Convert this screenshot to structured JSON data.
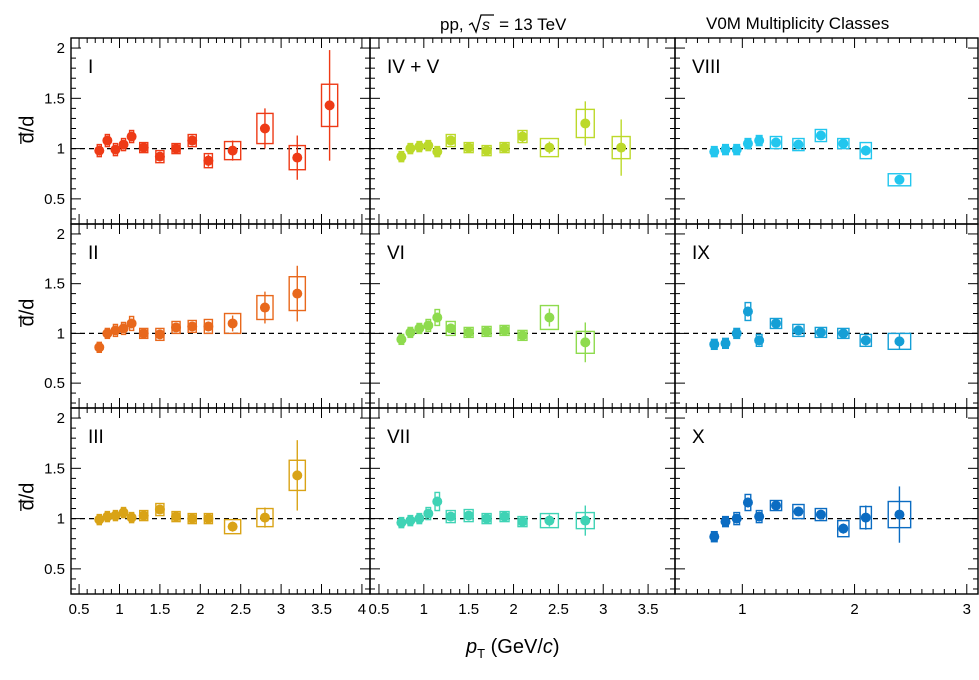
{
  "header": {
    "energy_prefix": "pp,",
    "energy_sqrt": "s",
    "energy_value": "= 13 TeV",
    "class_title": "V0M Multiplicity Classes"
  },
  "axis": {
    "ylabel": "d̅/d",
    "xlabel_var": "p",
    "xlabel_sub": "T",
    "xlabel_unit_open": " (GeV/",
    "xlabel_unit_c": "c",
    "xlabel_unit_close": ")"
  },
  "colors": {
    "I": "#ee3a16",
    "II": "#e8681c",
    "III": "#d9a316",
    "IV + V": "#bcd92a",
    "VI": "#8edb4e",
    "VII": "#3fd3b5",
    "VIII": "#22c6ee",
    "IX": "#159fd6",
    "X": "#0b6cc2"
  },
  "chart_data": [
    {
      "type": "scatter",
      "title": "I",
      "xlim": [
        0.4,
        4.1
      ],
      "ylim": [
        0.25,
        2.1
      ],
      "yticks": [
        "0.5",
        "1",
        "1.5",
        "2"
      ],
      "xticks": [
        "0.5",
        "1",
        "1.5",
        "2",
        "2.5",
        "3",
        "3.5",
        "4"
      ],
      "reference_line": 1,
      "points": [
        {
          "x": 0.75,
          "y": 0.98,
          "stat": 0.05,
          "sys": 0.06,
          "bw": 0.05
        },
        {
          "x": 0.85,
          "y": 1.08,
          "stat": 0.05,
          "sys": 0.06,
          "bw": 0.05
        },
        {
          "x": 0.95,
          "y": 0.99,
          "stat": 0.04,
          "sys": 0.06,
          "bw": 0.05
        },
        {
          "x": 1.05,
          "y": 1.04,
          "stat": 0.04,
          "sys": 0.06,
          "bw": 0.05
        },
        {
          "x": 1.15,
          "y": 1.12,
          "stat": 0.04,
          "sys": 0.06,
          "bw": 0.05
        },
        {
          "x": 1.3,
          "y": 1.01,
          "stat": 0.04,
          "sys": 0.05,
          "bw": 0.1
        },
        {
          "x": 1.5,
          "y": 0.92,
          "stat": 0.04,
          "sys": 0.06,
          "bw": 0.1
        },
        {
          "x": 1.7,
          "y": 1.0,
          "stat": 0.04,
          "sys": 0.05,
          "bw": 0.1
        },
        {
          "x": 1.9,
          "y": 1.08,
          "stat": 0.05,
          "sys": 0.06,
          "bw": 0.1
        },
        {
          "x": 2.1,
          "y": 0.88,
          "stat": 0.06,
          "sys": 0.07,
          "bw": 0.1
        },
        {
          "x": 2.4,
          "y": 0.98,
          "stat": 0.1,
          "sys": 0.09,
          "bw": 0.2
        },
        {
          "x": 2.8,
          "y": 1.2,
          "stat": 0.2,
          "sys": 0.15,
          "bw": 0.2
        },
        {
          "x": 3.2,
          "y": 0.91,
          "stat": 0.22,
          "sys": 0.12,
          "bw": 0.2
        },
        {
          "x": 3.6,
          "y": 1.43,
          "stat": 0.55,
          "sys": 0.21,
          "bw": 0.2
        }
      ]
    },
    {
      "type": "scatter",
      "title": "IV + V",
      "xlim": [
        0.4,
        3.8
      ],
      "ylim": [
        0.25,
        2.1
      ],
      "yticks": [
        "0.5",
        "1",
        "1.5",
        "2"
      ],
      "xticks": [
        "0.5",
        "1",
        "1.5",
        "2",
        "2.5",
        "3",
        "3.5"
      ],
      "reference_line": 1,
      "points": [
        {
          "x": 0.75,
          "y": 0.92,
          "stat": 0.04,
          "sys": 0.05,
          "bw": 0.05
        },
        {
          "x": 0.85,
          "y": 1.0,
          "stat": 0.04,
          "sys": 0.05,
          "bw": 0.05
        },
        {
          "x": 0.95,
          "y": 1.02,
          "stat": 0.04,
          "sys": 0.05,
          "bw": 0.05
        },
        {
          "x": 1.05,
          "y": 1.03,
          "stat": 0.04,
          "sys": 0.05,
          "bw": 0.05
        },
        {
          "x": 1.15,
          "y": 0.97,
          "stat": 0.04,
          "sys": 0.05,
          "bw": 0.05
        },
        {
          "x": 1.3,
          "y": 1.08,
          "stat": 0.04,
          "sys": 0.06,
          "bw": 0.1
        },
        {
          "x": 1.5,
          "y": 1.01,
          "stat": 0.04,
          "sys": 0.05,
          "bw": 0.1
        },
        {
          "x": 1.7,
          "y": 0.98,
          "stat": 0.04,
          "sys": 0.05,
          "bw": 0.1
        },
        {
          "x": 1.9,
          "y": 1.01,
          "stat": 0.04,
          "sys": 0.05,
          "bw": 0.1
        },
        {
          "x": 2.1,
          "y": 1.12,
          "stat": 0.06,
          "sys": 0.06,
          "bw": 0.1
        },
        {
          "x": 2.4,
          "y": 1.01,
          "stat": 0.06,
          "sys": 0.09,
          "bw": 0.2
        },
        {
          "x": 2.8,
          "y": 1.25,
          "stat": 0.22,
          "sys": 0.14,
          "bw": 0.2
        },
        {
          "x": 3.2,
          "y": 1.01,
          "stat": 0.28,
          "sys": 0.11,
          "bw": 0.2
        }
      ]
    },
    {
      "type": "scatter",
      "title": "VIII",
      "xlim": [
        0.4,
        3.1
      ],
      "ylim": [
        0.25,
        2.1
      ],
      "yticks": [
        "0.5",
        "1",
        "1.5",
        "2"
      ],
      "xticks": [
        "1",
        "2",
        "3"
      ],
      "reference_line": 1,
      "points": [
        {
          "x": 0.75,
          "y": 0.97,
          "stat": 0.04,
          "sys": 0.05,
          "bw": 0.05
        },
        {
          "x": 0.85,
          "y": 0.99,
          "stat": 0.03,
          "sys": 0.05,
          "bw": 0.05
        },
        {
          "x": 0.95,
          "y": 0.99,
          "stat": 0.03,
          "sys": 0.05,
          "bw": 0.05
        },
        {
          "x": 1.05,
          "y": 1.05,
          "stat": 0.03,
          "sys": 0.05,
          "bw": 0.05
        },
        {
          "x": 1.15,
          "y": 1.08,
          "stat": 0.03,
          "sys": 0.05,
          "bw": 0.05
        },
        {
          "x": 1.3,
          "y": 1.06,
          "stat": 0.03,
          "sys": 0.06,
          "bw": 0.1
        },
        {
          "x": 1.5,
          "y": 1.04,
          "stat": 0.03,
          "sys": 0.06,
          "bw": 0.1
        },
        {
          "x": 1.7,
          "y": 1.13,
          "stat": 0.04,
          "sys": 0.06,
          "bw": 0.1
        },
        {
          "x": 1.9,
          "y": 1.05,
          "stat": 0.04,
          "sys": 0.05,
          "bw": 0.1
        },
        {
          "x": 2.1,
          "y": 0.98,
          "stat": 0.05,
          "sys": 0.08,
          "bw": 0.1
        },
        {
          "x": 2.4,
          "y": 0.69,
          "stat": 0.03,
          "sys": 0.06,
          "bw": 0.2
        }
      ]
    },
    {
      "type": "scatter",
      "title": "II",
      "xlim": [
        0.4,
        4.1
      ],
      "ylim": [
        0.25,
        2.1
      ],
      "yticks": [
        "0.5",
        "1",
        "1.5",
        "2"
      ],
      "xticks": [
        "0.5",
        "1",
        "1.5",
        "2",
        "2.5",
        "3",
        "3.5",
        "4"
      ],
      "reference_line": 1,
      "points": [
        {
          "x": 0.75,
          "y": 0.86,
          "stat": 0.05,
          "sys": 0.05,
          "bw": 0.05
        },
        {
          "x": 0.85,
          "y": 1.0,
          "stat": 0.04,
          "sys": 0.05,
          "bw": 0.05
        },
        {
          "x": 0.95,
          "y": 1.03,
          "stat": 0.04,
          "sys": 0.06,
          "bw": 0.05
        },
        {
          "x": 1.05,
          "y": 1.05,
          "stat": 0.04,
          "sys": 0.06,
          "bw": 0.05
        },
        {
          "x": 1.15,
          "y": 1.1,
          "stat": 0.04,
          "sys": 0.07,
          "bw": 0.05
        },
        {
          "x": 1.3,
          "y": 1.0,
          "stat": 0.04,
          "sys": 0.05,
          "bw": 0.1
        },
        {
          "x": 1.5,
          "y": 0.99,
          "stat": 0.04,
          "sys": 0.06,
          "bw": 0.1
        },
        {
          "x": 1.7,
          "y": 1.06,
          "stat": 0.04,
          "sys": 0.06,
          "bw": 0.1
        },
        {
          "x": 1.9,
          "y": 1.07,
          "stat": 0.04,
          "sys": 0.06,
          "bw": 0.1
        },
        {
          "x": 2.1,
          "y": 1.07,
          "stat": 0.05,
          "sys": 0.07,
          "bw": 0.1
        },
        {
          "x": 2.4,
          "y": 1.1,
          "stat": 0.08,
          "sys": 0.1,
          "bw": 0.2
        },
        {
          "x": 2.8,
          "y": 1.26,
          "stat": 0.16,
          "sys": 0.12,
          "bw": 0.2
        },
        {
          "x": 3.2,
          "y": 1.4,
          "stat": 0.28,
          "sys": 0.17,
          "bw": 0.2
        }
      ]
    },
    {
      "type": "scatter",
      "title": "VI",
      "xlim": [
        0.4,
        3.8
      ],
      "ylim": [
        0.25,
        2.1
      ],
      "yticks": [
        "0.5",
        "1",
        "1.5",
        "2"
      ],
      "xticks": [
        "0.5",
        "1",
        "1.5",
        "2",
        "2.5",
        "3",
        "3.5"
      ],
      "reference_line": 1,
      "points": [
        {
          "x": 0.75,
          "y": 0.94,
          "stat": 0.04,
          "sys": 0.05,
          "bw": 0.05
        },
        {
          "x": 0.85,
          "y": 1.01,
          "stat": 0.04,
          "sys": 0.05,
          "bw": 0.05
        },
        {
          "x": 0.95,
          "y": 1.05,
          "stat": 0.03,
          "sys": 0.05,
          "bw": 0.05
        },
        {
          "x": 1.05,
          "y": 1.08,
          "stat": 0.03,
          "sys": 0.06,
          "bw": 0.05
        },
        {
          "x": 1.15,
          "y": 1.16,
          "stat": 0.04,
          "sys": 0.08,
          "bw": 0.05
        },
        {
          "x": 1.3,
          "y": 1.05,
          "stat": 0.04,
          "sys": 0.07,
          "bw": 0.1
        },
        {
          "x": 1.5,
          "y": 1.01,
          "stat": 0.03,
          "sys": 0.05,
          "bw": 0.1
        },
        {
          "x": 1.7,
          "y": 1.02,
          "stat": 0.03,
          "sys": 0.05,
          "bw": 0.1
        },
        {
          "x": 1.9,
          "y": 1.03,
          "stat": 0.04,
          "sys": 0.05,
          "bw": 0.1
        },
        {
          "x": 2.1,
          "y": 0.98,
          "stat": 0.05,
          "sys": 0.05,
          "bw": 0.1
        },
        {
          "x": 2.4,
          "y": 1.16,
          "stat": 0.09,
          "sys": 0.12,
          "bw": 0.2
        },
        {
          "x": 2.8,
          "y": 0.91,
          "stat": 0.2,
          "sys": 0.11,
          "bw": 0.2
        }
      ]
    },
    {
      "type": "scatter",
      "title": "IX",
      "xlim": [
        0.4,
        3.1
      ],
      "ylim": [
        0.25,
        2.1
      ],
      "yticks": [
        "0.5",
        "1",
        "1.5",
        "2"
      ],
      "xticks": [
        "1",
        "2",
        "3"
      ],
      "reference_line": 1,
      "points": [
        {
          "x": 0.75,
          "y": 0.89,
          "stat": 0.04,
          "sys": 0.05,
          "bw": 0.05
        },
        {
          "x": 0.85,
          "y": 0.9,
          "stat": 0.03,
          "sys": 0.05,
          "bw": 0.05
        },
        {
          "x": 0.95,
          "y": 1.0,
          "stat": 0.03,
          "sys": 0.05,
          "bw": 0.05
        },
        {
          "x": 1.05,
          "y": 1.22,
          "stat": 0.05,
          "sys": 0.09,
          "bw": 0.05
        },
        {
          "x": 1.15,
          "y": 0.93,
          "stat": 0.04,
          "sys": 0.06,
          "bw": 0.05
        },
        {
          "x": 1.3,
          "y": 1.1,
          "stat": 0.04,
          "sys": 0.05,
          "bw": 0.1
        },
        {
          "x": 1.5,
          "y": 1.03,
          "stat": 0.04,
          "sys": 0.06,
          "bw": 0.1
        },
        {
          "x": 1.7,
          "y": 1.01,
          "stat": 0.04,
          "sys": 0.05,
          "bw": 0.1
        },
        {
          "x": 1.9,
          "y": 1.0,
          "stat": 0.04,
          "sys": 0.05,
          "bw": 0.1
        },
        {
          "x": 2.1,
          "y": 0.93,
          "stat": 0.05,
          "sys": 0.06,
          "bw": 0.1
        },
        {
          "x": 2.4,
          "y": 0.92,
          "stat": 0.08,
          "sys": 0.08,
          "bw": 0.2
        }
      ]
    },
    {
      "type": "scatter",
      "title": "III",
      "xlim": [
        0.4,
        4.1
      ],
      "ylim": [
        0.25,
        2.1
      ],
      "yticks": [
        "0.5",
        "1",
        "1.5",
        "2"
      ],
      "xticks": [
        "0.5",
        "1",
        "1.5",
        "2",
        "2.5",
        "3",
        "3.5",
        "4"
      ],
      "reference_line": 1,
      "points": [
        {
          "x": 0.75,
          "y": 0.99,
          "stat": 0.04,
          "sys": 0.05,
          "bw": 0.05
        },
        {
          "x": 0.85,
          "y": 1.02,
          "stat": 0.04,
          "sys": 0.05,
          "bw": 0.05
        },
        {
          "x": 0.95,
          "y": 1.03,
          "stat": 0.04,
          "sys": 0.05,
          "bw": 0.05
        },
        {
          "x": 1.05,
          "y": 1.06,
          "stat": 0.04,
          "sys": 0.05,
          "bw": 0.05
        },
        {
          "x": 1.15,
          "y": 1.01,
          "stat": 0.04,
          "sys": 0.05,
          "bw": 0.05
        },
        {
          "x": 1.3,
          "y": 1.03,
          "stat": 0.04,
          "sys": 0.05,
          "bw": 0.1
        },
        {
          "x": 1.5,
          "y": 1.09,
          "stat": 0.04,
          "sys": 0.06,
          "bw": 0.1
        },
        {
          "x": 1.7,
          "y": 1.02,
          "stat": 0.04,
          "sys": 0.05,
          "bw": 0.1
        },
        {
          "x": 1.9,
          "y": 1.0,
          "stat": 0.04,
          "sys": 0.05,
          "bw": 0.1
        },
        {
          "x": 2.1,
          "y": 1.0,
          "stat": 0.04,
          "sys": 0.05,
          "bw": 0.1
        },
        {
          "x": 2.4,
          "y": 0.92,
          "stat": 0.05,
          "sys": 0.07,
          "bw": 0.2
        },
        {
          "x": 2.8,
          "y": 1.01,
          "stat": 0.1,
          "sys": 0.09,
          "bw": 0.2
        },
        {
          "x": 3.2,
          "y": 1.43,
          "stat": 0.35,
          "sys": 0.15,
          "bw": 0.2
        }
      ]
    },
    {
      "type": "scatter",
      "title": "VII",
      "xlim": [
        0.4,
        3.8
      ],
      "ylim": [
        0.25,
        2.1
      ],
      "yticks": [
        "0.5",
        "1",
        "1.5",
        "2"
      ],
      "xticks": [
        "0.5",
        "1",
        "1.5",
        "2",
        "2.5",
        "3",
        "3.5"
      ],
      "reference_line": 1,
      "points": [
        {
          "x": 0.75,
          "y": 0.96,
          "stat": 0.04,
          "sys": 0.05,
          "bw": 0.05
        },
        {
          "x": 0.85,
          "y": 0.98,
          "stat": 0.03,
          "sys": 0.05,
          "bw": 0.05
        },
        {
          "x": 0.95,
          "y": 1.0,
          "stat": 0.03,
          "sys": 0.05,
          "bw": 0.05
        },
        {
          "x": 1.05,
          "y": 1.05,
          "stat": 0.03,
          "sys": 0.06,
          "bw": 0.05
        },
        {
          "x": 1.15,
          "y": 1.17,
          "stat": 0.04,
          "sys": 0.09,
          "bw": 0.05
        },
        {
          "x": 1.3,
          "y": 1.02,
          "stat": 0.03,
          "sys": 0.06,
          "bw": 0.1
        },
        {
          "x": 1.5,
          "y": 1.03,
          "stat": 0.03,
          "sys": 0.06,
          "bw": 0.1
        },
        {
          "x": 1.7,
          "y": 1.0,
          "stat": 0.03,
          "sys": 0.05,
          "bw": 0.1
        },
        {
          "x": 1.9,
          "y": 1.02,
          "stat": 0.03,
          "sys": 0.05,
          "bw": 0.1
        },
        {
          "x": 2.1,
          "y": 0.97,
          "stat": 0.04,
          "sys": 0.05,
          "bw": 0.1
        },
        {
          "x": 2.4,
          "y": 0.98,
          "stat": 0.06,
          "sys": 0.07,
          "bw": 0.2
        },
        {
          "x": 2.8,
          "y": 0.98,
          "stat": 0.15,
          "sys": 0.08,
          "bw": 0.2
        }
      ]
    },
    {
      "type": "scatter",
      "title": "X",
      "xlim": [
        0.4,
        3.1
      ],
      "ylim": [
        0.25,
        2.1
      ],
      "yticks": [
        "0.5",
        "1",
        "1.5",
        "2"
      ],
      "xticks": [
        "1",
        "2",
        "3"
      ],
      "reference_line": 1,
      "points": [
        {
          "x": 0.75,
          "y": 0.82,
          "stat": 0.04,
          "sys": 0.05,
          "bw": 0.05
        },
        {
          "x": 0.85,
          "y": 0.97,
          "stat": 0.04,
          "sys": 0.05,
          "bw": 0.05
        },
        {
          "x": 0.95,
          "y": 1.0,
          "stat": 0.03,
          "sys": 0.06,
          "bw": 0.05
        },
        {
          "x": 1.05,
          "y": 1.16,
          "stat": 0.05,
          "sys": 0.08,
          "bw": 0.05
        },
        {
          "x": 1.15,
          "y": 1.02,
          "stat": 0.04,
          "sys": 0.06,
          "bw": 0.05
        },
        {
          "x": 1.3,
          "y": 1.13,
          "stat": 0.04,
          "sys": 0.05,
          "bw": 0.1
        },
        {
          "x": 1.5,
          "y": 1.07,
          "stat": 0.04,
          "sys": 0.07,
          "bw": 0.1
        },
        {
          "x": 1.7,
          "y": 1.04,
          "stat": 0.04,
          "sys": 0.06,
          "bw": 0.1
        },
        {
          "x": 1.9,
          "y": 0.9,
          "stat": 0.05,
          "sys": 0.08,
          "bw": 0.1
        },
        {
          "x": 2.1,
          "y": 1.01,
          "stat": 0.12,
          "sys": 0.11,
          "bw": 0.1
        },
        {
          "x": 2.4,
          "y": 1.04,
          "stat": 0.28,
          "sys": 0.13,
          "bw": 0.2
        }
      ]
    }
  ]
}
